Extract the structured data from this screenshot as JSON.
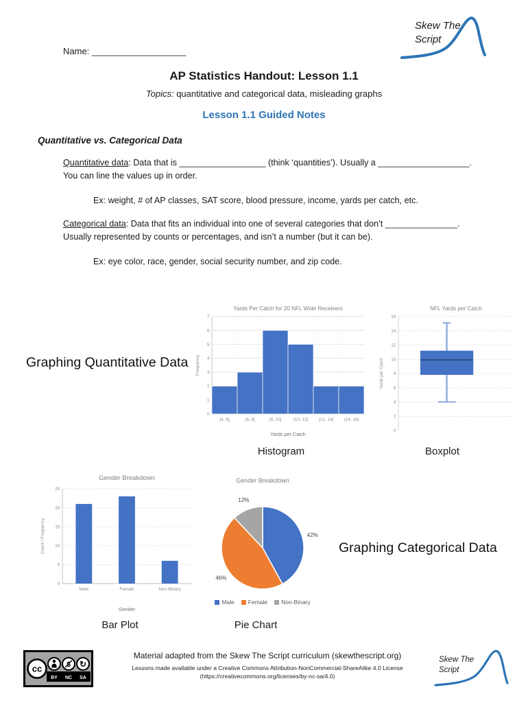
{
  "page": {
    "name_label": "Name: ___________________",
    "title": "AP Statistics Handout: Lesson 1.1",
    "topics_label": "Topics:",
    "topics_text": " quantitative and categorical data, misleading graphs",
    "guided_notes_heading": "Lesson 1.1 Guided Notes",
    "section_heading": "Quantitative vs. Categorical Data"
  },
  "logo": {
    "line1": "Skew The",
    "line2": "Script",
    "curve_color": "#2E75B6"
  },
  "quantitative": {
    "term": "Quantitative data",
    "line1_rest": ": Data that is __________________ (think ‘quantities’). Usually a ___________________.",
    "line2": "You can line the values up in order.",
    "example": "Ex: weight, # of AP classes, SAT score, blood pressure, income, yards per catch, etc."
  },
  "categorical": {
    "term": "Categorical data",
    "line1_rest": ": Data that fits an individual into one of several categories that don’t _______________.",
    "line2": "Usually represented by counts or percentages, and isn’t a number (but it can be).",
    "example": "Ex: eye color, race, gender, social security number, and zip code."
  },
  "sections": {
    "quantitative_heading": "Graphing Quantitative Data",
    "categorical_heading": "Graphing Categorical Data",
    "histogram_caption": "Histogram",
    "boxplot_caption": "Boxplot",
    "barplot_caption": "Bar Plot",
    "piechart_caption": "Pie Chart"
  },
  "chart_data": [
    {
      "id": "histogram",
      "type": "bar",
      "title": "Yards Per Catch for 20 NFL Wide Receivers",
      "xlabel": "Yards per Catch",
      "ylabel": "Frequency",
      "categories": [
        "[4, 6]",
        "(6, 8]",
        "(8, 10]",
        "(10, 12]",
        "(12, 14]",
        "(14, 16]"
      ],
      "values": [
        2,
        3,
        6,
        5,
        2,
        2
      ],
      "ylim": [
        0,
        7
      ],
      "ytick_step": 1,
      "bar_color": "#4472C4",
      "grid": true,
      "legend_position": "none"
    },
    {
      "id": "boxplot",
      "type": "boxplot",
      "title": "NFL Yards per Catch",
      "ylabel": "Yards per Catch",
      "min": 4,
      "q1": 7.8,
      "median": 9.9,
      "q3": 11.2,
      "max": 15.1,
      "ylim": [
        0,
        16
      ],
      "ytick_step": 2,
      "box_color": "#4472C4",
      "whisker_color": "#8FAADC",
      "median_color": "#264478",
      "grid": true
    },
    {
      "id": "barplot",
      "type": "bar",
      "title": "Gender Breakdown",
      "xlabel": "Gender",
      "ylabel": "Count / Frequency",
      "categories": [
        "Male",
        "Female",
        "Non-Binary"
      ],
      "values": [
        21,
        23,
        6
      ],
      "ylim": [
        0,
        25
      ],
      "ytick_step": 5,
      "bar_color": "#4472C4",
      "grid": true,
      "legend_position": "none"
    },
    {
      "id": "pie",
      "type": "pie",
      "title": "Gender Breakdown",
      "labels": [
        "Male",
        "Female",
        "Non-Binary"
      ],
      "values": [
        42,
        46,
        12
      ],
      "display_labels": [
        "42%",
        "46%",
        "12%"
      ],
      "colors": [
        "#4472C4",
        "#ED7D31",
        "#A5A5A5"
      ],
      "legend_position": "bottom"
    }
  ],
  "footer": {
    "cc": "cc",
    "by": "BY",
    "nc": "NC",
    "sa": "SA",
    "line1": "Material adapted from the Skew The Script curriculum (skewthescript.org)",
    "line2": "Lessons made available under a Creative Commons Attribution-NonCommercial-ShareAlike 4.0 License",
    "line3": "(https://creativecommons.org/licenses/by-nc-sa/4.0)"
  }
}
